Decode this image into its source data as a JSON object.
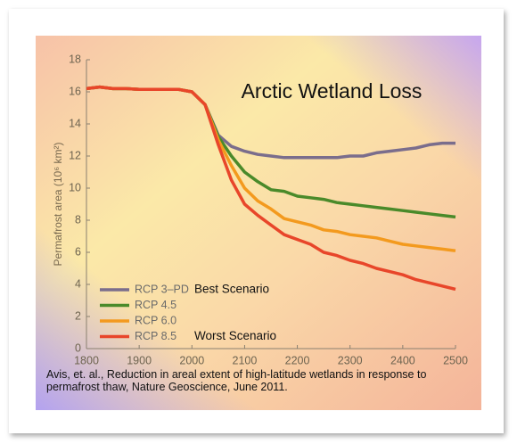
{
  "chart_data": {
    "type": "line",
    "title": "Arctic Wetland Loss",
    "y_label": "Permafrost area (10⁶ km²)",
    "source": "Avis, et. al., Reduction in areal extent of high-latitude wetlands in response to permafrost thaw, Nature Geoscience, June 2011.",
    "x": [
      1800,
      1825,
      1850,
      1875,
      1900,
      1925,
      1950,
      1975,
      2000,
      2025,
      2050,
      2075,
      2100,
      2125,
      2150,
      2175,
      2200,
      2225,
      2250,
      2275,
      2300,
      2325,
      2350,
      2375,
      2400,
      2425,
      2450,
      2475,
      2500
    ],
    "series": [
      {
        "name": "RCP 3–PD",
        "scenario": "Best Scenario",
        "color": "#7a6d8c",
        "values": [
          16.2,
          16.3,
          16.2,
          16.2,
          16.15,
          16.15,
          16.15,
          16.15,
          16.0,
          15.2,
          13.3,
          12.6,
          12.3,
          12.1,
          12.0,
          11.9,
          11.9,
          11.9,
          11.9,
          11.9,
          12.0,
          12.0,
          12.2,
          12.3,
          12.4,
          12.5,
          12.7,
          12.8,
          12.8
        ]
      },
      {
        "name": "RCP 4.5",
        "color": "#4a8a2a",
        "values": [
          16.2,
          16.3,
          16.2,
          16.2,
          16.15,
          16.15,
          16.15,
          16.15,
          16.0,
          15.2,
          13.2,
          12.0,
          11.0,
          10.4,
          9.9,
          9.8,
          9.5,
          9.4,
          9.3,
          9.1,
          9.0,
          8.9,
          8.8,
          8.7,
          8.6,
          8.5,
          8.4,
          8.3,
          8.2
        ]
      },
      {
        "name": "RCP 6.0",
        "color": "#f39a1e",
        "values": [
          16.2,
          16.3,
          16.2,
          16.2,
          16.15,
          16.15,
          16.15,
          16.15,
          16.0,
          15.2,
          13.0,
          11.4,
          10.0,
          9.2,
          8.7,
          8.1,
          7.9,
          7.7,
          7.4,
          7.3,
          7.1,
          7.0,
          6.9,
          6.7,
          6.5,
          6.4,
          6.3,
          6.2,
          6.1
        ]
      },
      {
        "name": "RCP 8.5",
        "scenario": "Worst Scenario",
        "color": "#e8462a",
        "values": [
          16.2,
          16.3,
          16.2,
          16.2,
          16.15,
          16.15,
          16.15,
          16.15,
          16.0,
          15.2,
          12.7,
          10.5,
          9.0,
          8.3,
          7.7,
          7.1,
          6.8,
          6.5,
          6.0,
          5.8,
          5.5,
          5.3,
          5.0,
          4.8,
          4.6,
          4.3,
          4.1,
          3.9,
          3.7
        ]
      }
    ],
    "xlim": [
      1800,
      2500
    ],
    "xticks": [
      1800,
      1900,
      2000,
      2100,
      2200,
      2300,
      2400,
      2500
    ],
    "ylim": [
      0,
      18
    ],
    "yticks": [
      0,
      2,
      4,
      6,
      8,
      10,
      12,
      14,
      16,
      18
    ]
  }
}
